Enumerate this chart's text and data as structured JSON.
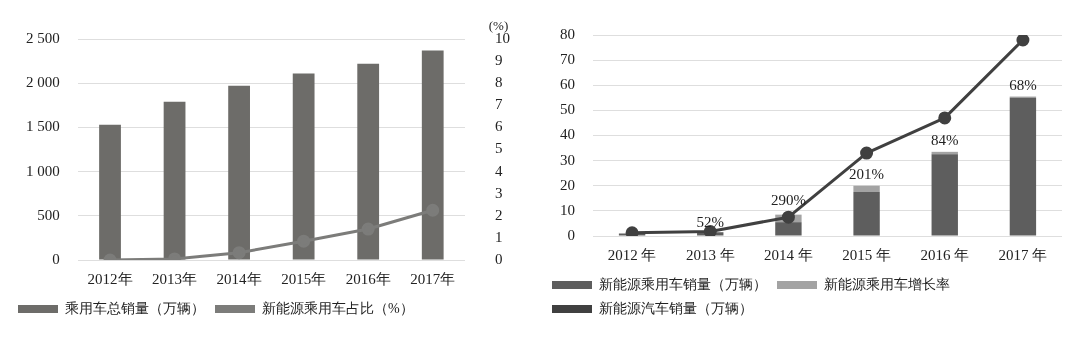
{
  "chart_data": [
    {
      "type": "bar",
      "categories": [
        "2012年",
        "2013年",
        "2014年",
        "2015年",
        "2016年",
        "2017年"
      ],
      "series": [
        {
          "name": "乘用车总销量（万辆）",
          "color": "#6d6c69",
          "values": [
            1530,
            1790,
            1970,
            2110,
            2220,
            2370
          ]
        },
        {
          "name": "新能源乘用车占比（%）",
          "type": "line",
          "axis": "y2",
          "color": "#7c7c7a",
          "values": [
            0,
            0.05,
            0.33,
            0.85,
            1.4,
            2.25
          ]
        }
      ],
      "ylim": [
        0,
        2500
      ],
      "yticks": [
        0,
        {
          "value": 500,
          "label": "500"
        },
        {
          "value": 1000,
          "label": "1 000"
        },
        {
          "value": 1500,
          "label": "1 500"
        },
        {
          "value": 2000,
          "label": "2 000"
        },
        {
          "value": 2500,
          "label": "2 500"
        }
      ],
      "y2label": "(%)",
      "y2lim": [
        0,
        10
      ],
      "y2ticks": [
        0,
        1,
        2,
        3,
        4,
        5,
        6,
        7,
        8,
        9,
        10
      ],
      "grid": "y",
      "legend": "bottom",
      "marker": "circle",
      "line_style": "solid"
    },
    {
      "type": "bar",
      "stacked": true,
      "categories": [
        "2012 年",
        "2013 年",
        "2014 年",
        "2015 年",
        "2016 年",
        "2017 年"
      ],
      "series": [
        {
          "name": "新能源乘用车销量（万辆）",
          "color": "#5e5e5e",
          "values": [
            1,
            1.5,
            5.5,
            17.5,
            32.5,
            55
          ]
        },
        {
          "name": "新能源乘用车增长率",
          "color": "#a3a3a3",
          "values": [
            0,
            0,
            3,
            2.5,
            1,
            0.5
          ]
        },
        {
          "name": "新能源汽车销量（万辆）",
          "type": "line",
          "color": "#404040",
          "values": [
            1.3,
            1.8,
            7.5,
            33,
            47,
            78
          ]
        }
      ],
      "ylim": [
        0,
        80
      ],
      "yticks": [
        0,
        10,
        20,
        30,
        40,
        50,
        60,
        70,
        80
      ],
      "annotations": [
        {
          "text": "52%",
          "x": "2013 年",
          "y": 1.5
        },
        {
          "text": "290%",
          "x": "2014 年",
          "y": 10
        },
        {
          "text": "201%",
          "x": "2015 年",
          "y": 20.5
        },
        {
          "text": "84%",
          "x": "2016 年",
          "y": 34
        },
        {
          "text": "68%",
          "x": "2017 年",
          "y": 56
        }
      ],
      "grid": "y",
      "legend": "bottom",
      "marker": "circle",
      "line_style": "solid"
    }
  ]
}
